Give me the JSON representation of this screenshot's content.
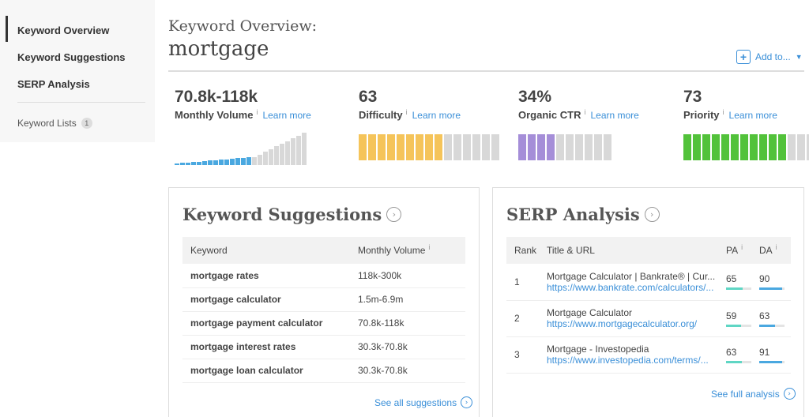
{
  "sidebar": {
    "items": [
      {
        "label": "Keyword Overview"
      },
      {
        "label": "Keyword Suggestions"
      },
      {
        "label": "SERP Analysis"
      }
    ],
    "lists_label": "Keyword Lists",
    "lists_count": "1"
  },
  "header": {
    "label": "Keyword Overview:",
    "keyword": "mortgage",
    "add_to_label": "Add to...",
    "add_icon": "plus-icon",
    "caret_icon": "caret-down-icon"
  },
  "metrics": {
    "learn_more": "Learn more",
    "info": "i",
    "volume": {
      "value": "70.8k-118k",
      "name": "Monthly Volume"
    },
    "difficulty": {
      "value": "63",
      "name": "Difficulty",
      "filled": 9,
      "total": 15,
      "color": "#f5c45a"
    },
    "ctr": {
      "value": "34%",
      "name": "Organic CTR",
      "filled": 4,
      "total": 10,
      "color": "#a58ed8"
    },
    "priority": {
      "value": "73",
      "name": "Priority",
      "filled": 11,
      "total": 15,
      "color": "#52c23a"
    },
    "colors": {
      "volume_active": "#4aa8e0",
      "empty": "#d8d8d8"
    }
  },
  "keyword_suggestions": {
    "title": "Keyword Suggestions",
    "col_keyword": "Keyword",
    "col_volume": "Monthly Volume",
    "rows": [
      {
        "keyword": "mortgage rates",
        "volume": "118k-300k"
      },
      {
        "keyword": "mortgage calculator",
        "volume": "1.5m-6.9m"
      },
      {
        "keyword": "mortgage payment calculator",
        "volume": "70.8k-118k"
      },
      {
        "keyword": "mortgage interest rates",
        "volume": "30.3k-70.8k"
      },
      {
        "keyword": "mortgage loan calculator",
        "volume": "30.3k-70.8k"
      }
    ],
    "see_all": "See all suggestions"
  },
  "serp_analysis": {
    "title": "SERP Analysis",
    "col_rank": "Rank",
    "col_title": "Title & URL",
    "col_pa": "PA",
    "col_da": "DA",
    "rows": [
      {
        "rank": "1",
        "title": "Mortgage Calculator | Bankrate® | Cur...",
        "url": "https://www.bankrate.com/calculators/...",
        "pa": "65",
        "da": "90",
        "pa_level": 0.65,
        "da_level": 0.9
      },
      {
        "rank": "2",
        "title": "Mortgage Calculator",
        "url": "https://www.mortgagecalculator.org/",
        "pa": "59",
        "da": "63",
        "pa_level": 0.59,
        "da_level": 0.63
      },
      {
        "rank": "3",
        "title": "Mortgage - Investopedia",
        "url": "https://www.investopedia.com/terms/...",
        "pa": "63",
        "da": "91",
        "pa_level": 0.63,
        "da_level": 0.91
      }
    ],
    "see_full": "See full analysis",
    "pa_color": "#5fd6c4",
    "da_color": "#4aa8e0"
  }
}
